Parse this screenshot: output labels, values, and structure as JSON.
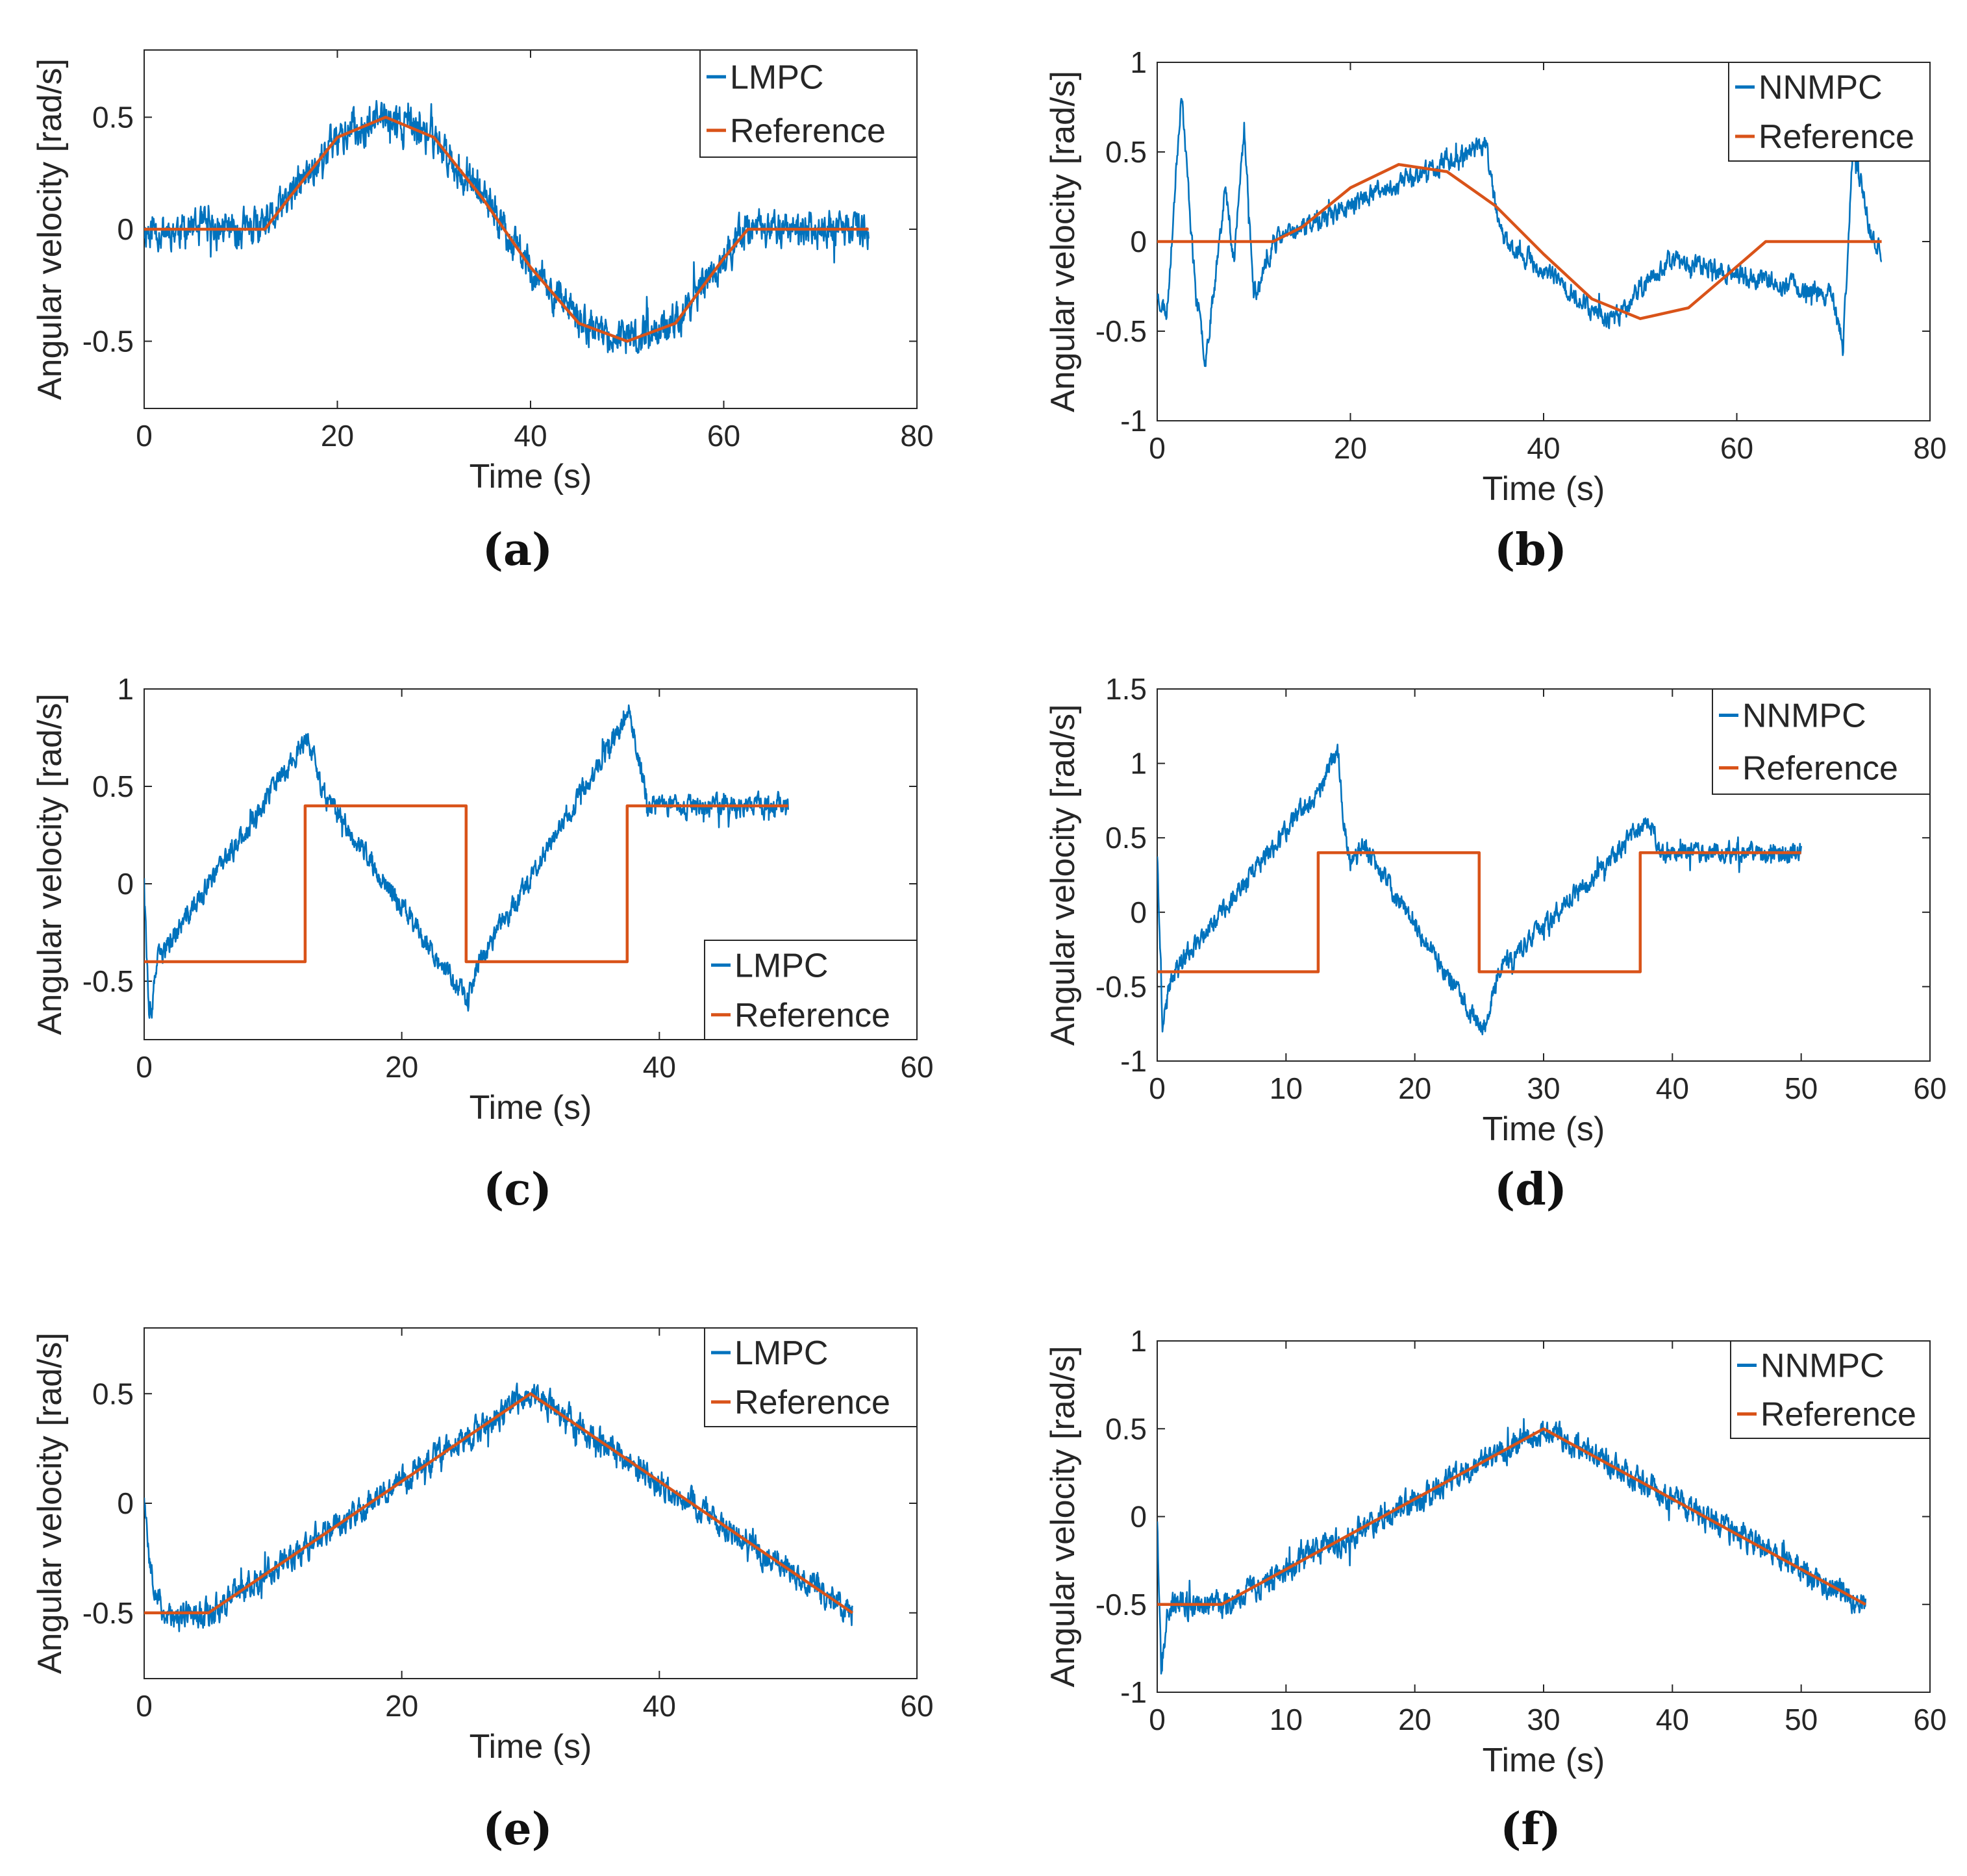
{
  "colors": {
    "measured": "#0072BD",
    "reference": "#D95319",
    "axis": "#262626",
    "background": "#ffffff"
  },
  "chart_data": [
    {
      "id": "a",
      "caption": "(a)",
      "type": "line",
      "xlabel": "Time (s)",
      "ylabel": "Angular velocity [rad/s]",
      "xlim": [
        0,
        80
      ],
      "ylim": [
        -0.8,
        0.8
      ],
      "xticks": [
        0,
        20,
        40,
        60,
        80
      ],
      "xtick_labels": [
        "0",
        "20",
        "40",
        "60",
        "80"
      ],
      "yticks": [
        -0.5,
        0,
        0.5
      ],
      "ytick_labels": [
        "-0.5",
        "0",
        "0.5"
      ],
      "legend": {
        "position": "top-right",
        "entries": [
          "LMPC",
          "Reference"
        ]
      },
      "t_end": 75,
      "noise": 0.09,
      "seed": 11,
      "series": [
        {
          "name": "LMPC",
          "role": "measured"
        },
        {
          "name": "Reference",
          "role": "reference",
          "piecewise": [
            [
              0,
              0
            ],
            [
              12.5,
              0
            ],
            [
              15,
              0.14
            ],
            [
              20,
              0.41
            ],
            [
              25,
              0.5
            ],
            [
              30,
              0.41
            ],
            [
              35,
              0.14
            ],
            [
              40,
              -0.17
            ],
            [
              45,
              -0.42
            ],
            [
              50,
              -0.5
            ],
            [
              55,
              -0.42
            ],
            [
              60,
              -0.13
            ],
            [
              62.5,
              0
            ],
            [
              75,
              0
            ]
          ]
        }
      ],
      "disturbances": []
    },
    {
      "id": "b",
      "caption": "(b)",
      "type": "line",
      "xlabel": "Time (s)",
      "ylabel": "Angular velocity [rad/s]",
      "xlim": [
        0,
        80
      ],
      "ylim": [
        -1,
        1
      ],
      "xticks": [
        0,
        20,
        40,
        60,
        80
      ],
      "xtick_labels": [
        "0",
        "20",
        "40",
        "60",
        "80"
      ],
      "yticks": [
        -1,
        -0.5,
        0,
        0.5,
        1
      ],
      "ytick_labels": [
        "-1",
        "-0.5",
        "0",
        "0.5",
        "1"
      ],
      "legend": {
        "position": "top-right",
        "entries": [
          "NNMPC",
          "Reference"
        ]
      },
      "t_end": 75,
      "noise": 0.06,
      "seed": 23,
      "series": [
        {
          "name": "NNMPC",
          "role": "measured"
        },
        {
          "name": "Reference",
          "role": "reference",
          "piecewise": [
            [
              0,
              0
            ],
            [
              12,
              0
            ],
            [
              15,
              0.08
            ],
            [
              20,
              0.3
            ],
            [
              25,
              0.43
            ],
            [
              30,
              0.39
            ],
            [
              35,
              0.2
            ],
            [
              40,
              -0.07
            ],
            [
              45,
              -0.32
            ],
            [
              50,
              -0.43
            ],
            [
              55,
              -0.37
            ],
            [
              60,
              -0.14
            ],
            [
              63,
              0
            ],
            [
              75,
              0
            ]
          ]
        }
      ],
      "disturbances": [
        [
          0,
          -0.3
        ],
        [
          1,
          -0.4
        ],
        [
          2.5,
          0.85
        ],
        [
          4,
          -0.3
        ],
        [
          5,
          -0.65
        ],
        [
          6,
          -0.2
        ],
        [
          7,
          0.3
        ],
        [
          8,
          -0.1
        ],
        [
          9,
          0.65
        ],
        [
          10,
          -0.3
        ],
        [
          11,
          -0.2
        ],
        [
          12,
          0
        ],
        [
          34,
          0.55
        ],
        [
          35,
          0.2
        ],
        [
          36,
          0
        ],
        [
          47,
          -0.45
        ],
        [
          53,
          -0.1
        ],
        [
          70,
          -0.3
        ],
        [
          71,
          -0.6
        ],
        [
          72,
          0.5
        ],
        [
          73,
          0.3
        ],
        [
          74,
          0
        ],
        [
          75,
          -0.05
        ]
      ]
    },
    {
      "id": "c",
      "caption": "(c)",
      "type": "line",
      "xlabel": "Time (s)",
      "ylabel": "Angular velocity [rad/s]",
      "xlim": [
        0,
        60
      ],
      "ylim": [
        -0.8,
        1
      ],
      "xticks": [
        0,
        20,
        40,
        60
      ],
      "xtick_labels": [
        "0",
        "20",
        "40",
        "60"
      ],
      "yticks": [
        -0.5,
        0,
        0.5,
        1
      ],
      "ytick_labels": [
        "-0.5",
        "0",
        "0.5",
        "1"
      ],
      "legend": {
        "position": "bottom-right",
        "entries": [
          "LMPC",
          "Reference"
        ]
      },
      "t_end": 50,
      "noise": 0.06,
      "seed": 37,
      "series": [
        {
          "name": "LMPC",
          "role": "measured"
        },
        {
          "name": "Reference",
          "role": "reference",
          "piecewise": [
            [
              0,
              -0.4
            ],
            [
              12.5,
              -0.4
            ],
            [
              12.5,
              0.4
            ],
            [
              25,
              0.4
            ],
            [
              25,
              -0.4
            ],
            [
              37.5,
              -0.4
            ],
            [
              37.5,
              0.4
            ],
            [
              50,
              0.4
            ]
          ]
        }
      ],
      "disturbances": [
        [
          0,
          0.05
        ],
        [
          0.4,
          -0.75
        ],
        [
          1,
          -0.4
        ],
        [
          12.7,
          0.75
        ],
        [
          14,
          0.45
        ],
        [
          25.2,
          -0.6
        ],
        [
          26,
          -0.4
        ],
        [
          37.7,
          0.88
        ],
        [
          39,
          0.45
        ]
      ]
    },
    {
      "id": "d",
      "caption": "(d)",
      "type": "line",
      "xlabel": "Time (s)",
      "ylabel": "Angular velocity [rad/s]",
      "xlim": [
        0,
        60
      ],
      "ylim": [
        -1,
        1.5
      ],
      "xticks": [
        0,
        10,
        20,
        30,
        40,
        50,
        60
      ],
      "xtick_labels": [
        "0",
        "10",
        "20",
        "30",
        "40",
        "50",
        "60"
      ],
      "yticks": [
        -1,
        -0.5,
        0,
        0.5,
        1,
        1.5
      ],
      "ytick_labels": [
        "-1",
        "-0.5",
        "0",
        "0.5",
        "1",
        "1.5"
      ],
      "legend": {
        "position": "top-right",
        "entries": [
          "NNMPC",
          "Reference"
        ]
      },
      "t_end": 50,
      "noise": 0.07,
      "seed": 41,
      "series": [
        {
          "name": "NNMPC",
          "role": "measured"
        },
        {
          "name": "Reference",
          "role": "reference",
          "piecewise": [
            [
              0,
              -0.4
            ],
            [
              12.5,
              -0.4
            ],
            [
              12.5,
              0.4
            ],
            [
              25,
              0.4
            ],
            [
              25,
              -0.4
            ],
            [
              37.5,
              -0.4
            ],
            [
              37.5,
              0.4
            ],
            [
              50,
              0.4
            ]
          ]
        }
      ],
      "disturbances": [
        [
          0,
          0.4
        ],
        [
          0.4,
          -0.75
        ],
        [
          1.2,
          -0.4
        ],
        [
          12.8,
          0.85
        ],
        [
          14,
          1.1
        ],
        [
          14.5,
          0.6
        ],
        [
          15,
          0.3
        ],
        [
          16,
          0.45
        ],
        [
          25.3,
          -0.8
        ],
        [
          26.5,
          -0.4
        ],
        [
          38,
          0.6
        ],
        [
          39,
          0.45
        ]
      ]
    },
    {
      "id": "e",
      "caption": "(e)",
      "type": "line",
      "xlabel": "Time (s)",
      "ylabel": "Angular velocity [rad/s]",
      "xlim": [
        0,
        60
      ],
      "ylim": [
        -0.8,
        0.8
      ],
      "xticks": [
        0,
        20,
        40,
        60
      ],
      "xtick_labels": [
        "0",
        "20",
        "40",
        "60"
      ],
      "yticks": [
        -0.5,
        0,
        0.5
      ],
      "ytick_labels": [
        "-0.5",
        "0",
        "0.5"
      ],
      "legend": {
        "position": "top-right",
        "entries": [
          "LMPC",
          "Reference"
        ]
      },
      "t_end": 55,
      "noise": 0.07,
      "seed": 53,
      "series": [
        {
          "name": "LMPC",
          "role": "measured"
        },
        {
          "name": "Reference",
          "role": "reference",
          "piecewise": [
            [
              0,
              -0.5
            ],
            [
              5,
              -0.5
            ],
            [
              30,
              0.5
            ],
            [
              55,
              -0.5
            ]
          ]
        }
      ],
      "disturbances": [
        [
          0,
          0.05
        ],
        [
          0.5,
          -0.3
        ],
        [
          1.5,
          -0.5
        ],
        [
          3,
          -0.55
        ]
      ]
    },
    {
      "id": "f",
      "caption": "(f)",
      "type": "line",
      "xlabel": "Time (s)",
      "ylabel": "Angular velocity [rad/s]",
      "xlim": [
        0,
        60
      ],
      "ylim": [
        -1,
        1
      ],
      "xticks": [
        0,
        10,
        20,
        30,
        40,
        50,
        60
      ],
      "xtick_labels": [
        "0",
        "10",
        "20",
        "30",
        "40",
        "50",
        "60"
      ],
      "yticks": [
        -1,
        -0.5,
        0,
        0.5,
        1
      ],
      "ytick_labels": [
        "-1",
        "-0.5",
        "0",
        "0.5",
        "1"
      ],
      "legend": {
        "position": "top-right",
        "entries": [
          "NNMPC",
          "Reference"
        ]
      },
      "t_end": 55,
      "noise": 0.08,
      "seed": 67,
      "series": [
        {
          "name": "NNMPC",
          "role": "measured"
        },
        {
          "name": "Reference",
          "role": "reference",
          "piecewise": [
            [
              0,
              -0.5
            ],
            [
              5,
              -0.5
            ],
            [
              30,
              0.5
            ],
            [
              55,
              -0.5
            ]
          ]
        }
      ],
      "disturbances": [
        [
          0,
          0.0
        ],
        [
          0.3,
          -0.85
        ],
        [
          0.8,
          -0.5
        ]
      ]
    }
  ]
}
